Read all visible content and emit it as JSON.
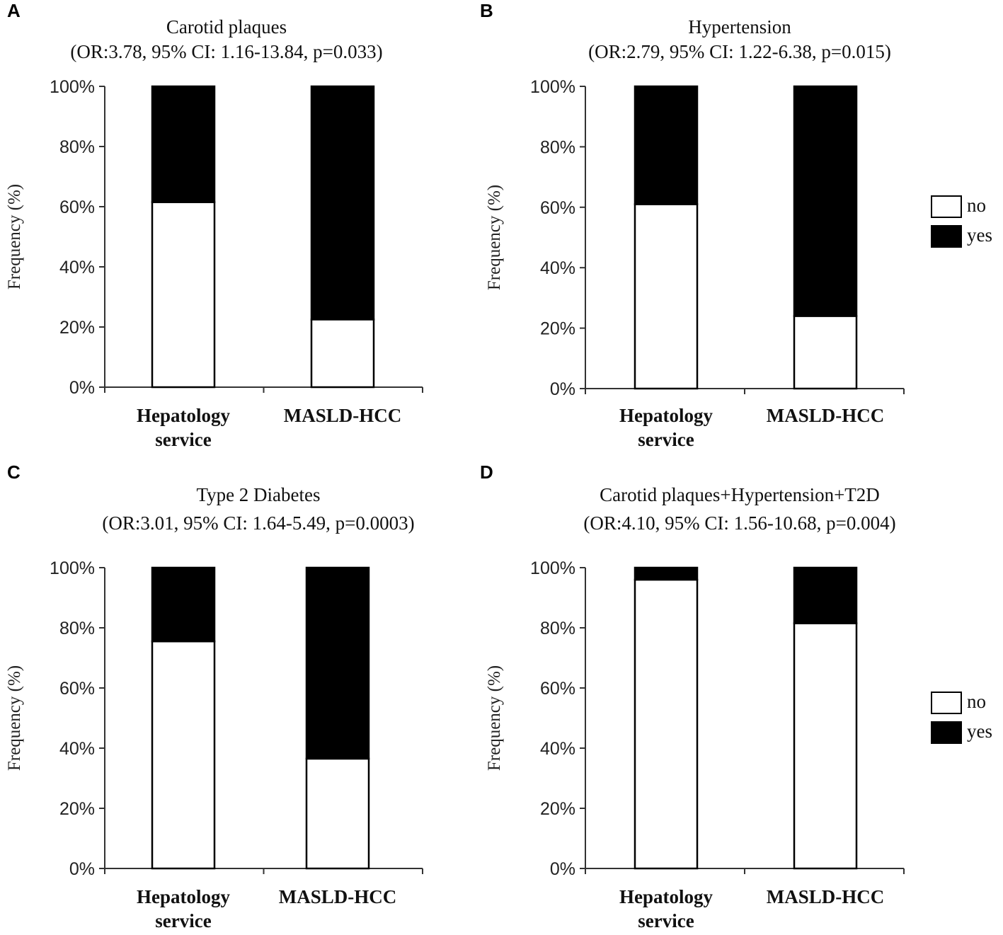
{
  "chart_data": [
    {
      "type": "bar",
      "stacked": true,
      "panel": "A",
      "title": "Carotid plaques",
      "subtitle": "(OR:3.78, 95% CI: 1.16-13.84, p=0.033)",
      "ylabel": "Frequency (%)",
      "ylim": [
        0,
        100
      ],
      "yticks": [
        "0%",
        "20%",
        "40%",
        "60%",
        "80%",
        "100%"
      ],
      "categories": [
        [
          "Hepatology",
          "service"
        ],
        [
          "MASLD-HCC"
        ]
      ],
      "series": [
        {
          "name": "no",
          "values": [
            61.5,
            22.5
          ]
        },
        {
          "name": "yes",
          "values": [
            38.5,
            77.5
          ]
        }
      ],
      "legend": false
    },
    {
      "type": "bar",
      "stacked": true,
      "panel": "B",
      "title": "Hypertension",
      "subtitle": "(OR:2.79, 95% CI: 1.22-6.38, p=0.015)",
      "ylabel": "Frequency (%)",
      "ylim": [
        0,
        100
      ],
      "yticks": [
        "0%",
        "20%",
        "40%",
        "60%",
        "80%",
        "100%"
      ],
      "categories": [
        [
          "Hepatology",
          "service"
        ],
        [
          "MASLD-HCC"
        ]
      ],
      "series": [
        {
          "name": "no",
          "values": [
            61,
            24
          ]
        },
        {
          "name": "yes",
          "values": [
            39,
            76
          ]
        }
      ],
      "legend": true
    },
    {
      "type": "bar",
      "stacked": true,
      "panel": "C",
      "title": "Type 2 Diabetes",
      "subtitle": "(OR:3.01, 95% CI: 1.64-5.49, p=0.0003)",
      "ylabel": "Frequency (%)",
      "ylim": [
        0,
        100
      ],
      "yticks": [
        "0%",
        "20%",
        "40%",
        "60%",
        "80%",
        "100%"
      ],
      "categories": [
        [
          "Hepatology",
          "service"
        ],
        [
          "MASLD-HCC"
        ]
      ],
      "series": [
        {
          "name": "no",
          "values": [
            75.5,
            36.5
          ]
        },
        {
          "name": "yes",
          "values": [
            24.5,
            63.5
          ]
        }
      ],
      "legend": false
    },
    {
      "type": "bar",
      "stacked": true,
      "panel": "D",
      "title": "Carotid plaques+Hypertension+T2D",
      "subtitle": "(OR:4.10, 95% CI: 1.56-10.68, p=0.004)",
      "ylabel": "Frequency (%)",
      "ylim": [
        0,
        100
      ],
      "yticks": [
        "0%",
        "20%",
        "40%",
        "60%",
        "80%",
        "100%"
      ],
      "categories": [
        [
          "Hepatology",
          "service"
        ],
        [
          "MASLD-HCC"
        ]
      ],
      "series": [
        {
          "name": "no",
          "values": [
            96,
            81.5
          ]
        },
        {
          "name": "yes",
          "values": [
            4,
            18.5
          ]
        }
      ],
      "legend": true
    }
  ],
  "colors": {
    "no": "#ffffff",
    "yes": "#000000",
    "axis": "#333333"
  }
}
